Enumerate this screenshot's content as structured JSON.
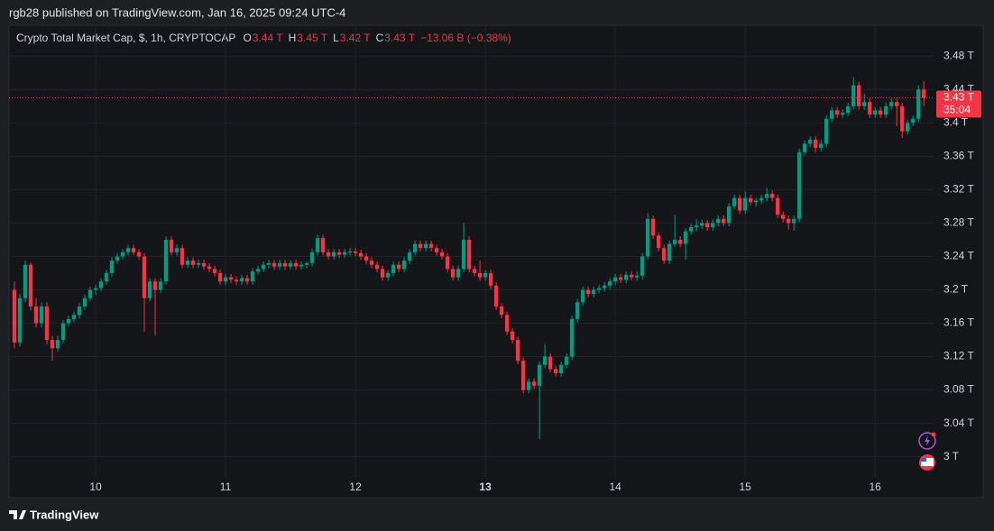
{
  "header": {
    "publisher": "rgb28 published on TradingView.com, Jan 16, 2025 09:24 UTC-4"
  },
  "footer": {
    "brand": "TradingView"
  },
  "chart_data": {
    "type": "candlestick",
    "title": "Crypto Total Market Cap, $, 1h, CRYPTOCAP",
    "legend_ohlc": [
      {
        "key": "O",
        "value": "3.44 T"
      },
      {
        "key": "H",
        "value": "3.45 T"
      },
      {
        "key": "L",
        "value": "3.42 T"
      },
      {
        "key": "C",
        "value": "3.43 T"
      }
    ],
    "change": "−13.06 B (−0.38%)",
    "up_color": "#089981",
    "down_color": "#f23645",
    "last_price": {
      "value": 3.43,
      "label": "3.43 T"
    },
    "countdown": "35:04",
    "xlim": [
      -1,
      169.8
    ],
    "xticks": [
      {
        "value": 15,
        "label": "10"
      },
      {
        "value": 39,
        "label": "11"
      },
      {
        "value": 63,
        "label": "12"
      },
      {
        "value": 87,
        "label": "13",
        "bold": true
      },
      {
        "value": 111,
        "label": "14"
      },
      {
        "value": 135,
        "label": "15"
      },
      {
        "value": 159,
        "label": "16"
      }
    ],
    "ylim": [
      2.951,
      3.517
    ],
    "yticks": [
      {
        "value": 3.0,
        "label": "3 T"
      },
      {
        "value": 3.04,
        "label": "3.04 T"
      },
      {
        "value": 3.08,
        "label": "3.08 T"
      },
      {
        "value": 3.12,
        "label": "3.12 T"
      },
      {
        "value": 3.16,
        "label": "3.16 T"
      },
      {
        "value": 3.2,
        "label": "3.2 T"
      },
      {
        "value": 3.24,
        "label": "3.24 T"
      },
      {
        "value": 3.28,
        "label": "3.28 T"
      },
      {
        "value": 3.32,
        "label": "3.32 T"
      },
      {
        "value": 3.36,
        "label": "3.36 T"
      },
      {
        "value": 3.4,
        "label": "3.4 T"
      },
      {
        "value": 3.44,
        "label": "3.44 T"
      },
      {
        "value": 3.48,
        "label": "3.48 T"
      }
    ],
    "grid": true,
    "candles": [
      [
        3.2,
        3.21,
        3.13,
        3.137
      ],
      [
        3.137,
        3.195,
        3.132,
        3.19
      ],
      [
        3.19,
        3.235,
        3.185,
        3.23
      ],
      [
        3.23,
        3.233,
        3.175,
        3.18
      ],
      [
        3.18,
        3.19,
        3.155,
        3.16
      ],
      [
        3.16,
        3.185,
        3.155,
        3.18
      ],
      [
        3.18,
        3.185,
        3.135,
        3.14
      ],
      [
        3.14,
        3.145,
        3.115,
        3.13
      ],
      [
        3.13,
        3.145,
        3.126,
        3.14
      ],
      [
        3.14,
        3.164,
        3.136,
        3.16
      ],
      [
        3.16,
        3.169,
        3.156,
        3.165
      ],
      [
        3.165,
        3.174,
        3.161,
        3.17
      ],
      [
        3.17,
        3.184,
        3.166,
        3.18
      ],
      [
        3.18,
        3.194,
        3.176,
        3.19
      ],
      [
        3.19,
        3.204,
        3.186,
        3.2
      ],
      [
        3.2,
        3.206,
        3.194,
        3.202
      ],
      [
        3.202,
        3.214,
        3.198,
        3.21
      ],
      [
        3.21,
        3.224,
        3.206,
        3.22
      ],
      [
        3.22,
        3.239,
        3.216,
        3.235
      ],
      [
        3.235,
        3.244,
        3.231,
        3.24
      ],
      [
        3.24,
        3.249,
        3.236,
        3.245
      ],
      [
        3.245,
        3.254,
        3.241,
        3.25
      ],
      [
        3.25,
        3.254,
        3.241,
        3.245
      ],
      [
        3.245,
        3.249,
        3.236,
        3.24
      ],
      [
        3.24,
        3.244,
        3.15,
        3.19
      ],
      [
        3.19,
        3.214,
        3.186,
        3.21
      ],
      [
        3.21,
        3.214,
        3.145,
        3.2
      ],
      [
        3.2,
        3.214,
        3.196,
        3.21
      ],
      [
        3.21,
        3.264,
        3.206,
        3.26
      ],
      [
        3.26,
        3.264,
        3.241,
        3.245
      ],
      [
        3.245,
        3.254,
        3.241,
        3.25
      ],
      [
        3.25,
        3.254,
        3.226,
        3.23
      ],
      [
        3.23,
        3.239,
        3.226,
        3.235
      ],
      [
        3.235,
        3.239,
        3.226,
        3.23
      ],
      [
        3.23,
        3.236,
        3.226,
        3.232
      ],
      [
        3.232,
        3.236,
        3.224,
        3.228
      ],
      [
        3.228,
        3.232,
        3.221,
        3.225
      ],
      [
        3.225,
        3.229,
        3.216,
        3.22
      ],
      [
        3.22,
        3.224,
        3.206,
        3.21
      ],
      [
        3.21,
        3.219,
        3.206,
        3.215
      ],
      [
        3.215,
        3.219,
        3.208,
        3.212
      ],
      [
        3.212,
        3.216,
        3.206,
        3.21
      ],
      [
        3.21,
        3.218,
        3.206,
        3.214
      ],
      [
        3.214,
        3.218,
        3.206,
        3.21
      ],
      [
        3.21,
        3.226,
        3.206,
        3.222
      ],
      [
        3.222,
        3.229,
        3.218,
        3.225
      ],
      [
        3.225,
        3.234,
        3.221,
        3.23
      ],
      [
        3.23,
        3.236,
        3.226,
        3.232
      ],
      [
        3.232,
        3.236,
        3.224,
        3.228
      ],
      [
        3.228,
        3.236,
        3.224,
        3.232
      ],
      [
        3.232,
        3.236,
        3.224,
        3.228
      ],
      [
        3.228,
        3.236,
        3.224,
        3.232
      ],
      [
        3.232,
        3.236,
        3.224,
        3.228
      ],
      [
        3.228,
        3.234,
        3.224,
        3.23
      ],
      [
        3.23,
        3.234,
        3.226,
        3.232
      ],
      [
        3.232,
        3.249,
        3.228,
        3.245
      ],
      [
        3.245,
        3.266,
        3.241,
        3.262
      ],
      [
        3.262,
        3.266,
        3.241,
        3.245
      ],
      [
        3.245,
        3.249,
        3.236,
        3.24
      ],
      [
        3.24,
        3.249,
        3.236,
        3.245
      ],
      [
        3.245,
        3.249,
        3.238,
        3.242
      ],
      [
        3.242,
        3.249,
        3.238,
        3.245
      ],
      [
        3.245,
        3.25,
        3.241,
        3.246
      ],
      [
        3.246,
        3.25,
        3.24,
        3.244
      ],
      [
        3.244,
        3.248,
        3.236,
        3.24
      ],
      [
        3.24,
        3.244,
        3.231,
        3.235
      ],
      [
        3.235,
        3.239,
        3.226,
        3.23
      ],
      [
        3.23,
        3.234,
        3.221,
        3.225
      ],
      [
        3.225,
        3.229,
        3.211,
        3.215
      ],
      [
        3.215,
        3.224,
        3.211,
        3.22
      ],
      [
        3.22,
        3.234,
        3.216,
        3.23
      ],
      [
        3.23,
        3.234,
        3.221,
        3.225
      ],
      [
        3.225,
        3.239,
        3.221,
        3.235
      ],
      [
        3.235,
        3.249,
        3.231,
        3.245
      ],
      [
        3.245,
        3.259,
        3.241,
        3.255
      ],
      [
        3.255,
        3.259,
        3.246,
        3.25
      ],
      [
        3.25,
        3.259,
        3.246,
        3.255
      ],
      [
        3.255,
        3.259,
        3.246,
        3.25
      ],
      [
        3.25,
        3.254,
        3.241,
        3.245
      ],
      [
        3.245,
        3.249,
        3.236,
        3.24
      ],
      [
        3.24,
        3.244,
        3.221,
        3.225
      ],
      [
        3.225,
        3.229,
        3.211,
        3.215
      ],
      [
        3.215,
        3.229,
        3.211,
        3.225
      ],
      [
        3.225,
        3.28,
        3.221,
        3.26
      ],
      [
        3.26,
        3.264,
        3.221,
        3.225
      ],
      [
        3.225,
        3.229,
        3.216,
        3.22
      ],
      [
        3.22,
        3.235,
        3.211,
        3.215
      ],
      [
        3.215,
        3.224,
        3.211,
        3.22
      ],
      [
        3.22,
        3.224,
        3.201,
        3.205
      ],
      [
        3.205,
        3.209,
        3.176,
        3.18
      ],
      [
        3.18,
        3.184,
        3.166,
        3.17
      ],
      [
        3.17,
        3.174,
        3.146,
        3.15
      ],
      [
        3.15,
        3.154,
        3.136,
        3.14
      ],
      [
        3.14,
        3.144,
        3.111,
        3.115
      ],
      [
        3.115,
        3.119,
        3.076,
        3.08
      ],
      [
        3.08,
        3.094,
        3.076,
        3.09
      ],
      [
        3.09,
        3.094,
        3.081,
        3.085
      ],
      [
        3.085,
        3.114,
        3.021,
        3.11
      ],
      [
        3.11,
        3.135,
        3.106,
        3.12
      ],
      [
        3.12,
        3.124,
        3.101,
        3.105
      ],
      [
        3.105,
        3.109,
        3.096,
        3.1
      ],
      [
        3.1,
        3.114,
        3.096,
        3.11
      ],
      [
        3.11,
        3.124,
        3.106,
        3.12
      ],
      [
        3.12,
        3.169,
        3.116,
        3.165
      ],
      [
        3.165,
        3.189,
        3.161,
        3.185
      ],
      [
        3.185,
        3.204,
        3.181,
        3.2
      ],
      [
        3.2,
        3.204,
        3.191,
        3.195
      ],
      [
        3.195,
        3.204,
        3.191,
        3.2
      ],
      [
        3.2,
        3.206,
        3.196,
        3.202
      ],
      [
        3.202,
        3.209,
        3.198,
        3.205
      ],
      [
        3.205,
        3.214,
        3.201,
        3.21
      ],
      [
        3.21,
        3.219,
        3.206,
        3.215
      ],
      [
        3.215,
        3.219,
        3.208,
        3.212
      ],
      [
        3.212,
        3.222,
        3.208,
        3.218
      ],
      [
        3.218,
        3.222,
        3.211,
        3.215
      ],
      [
        3.215,
        3.222,
        3.211,
        3.217
      ],
      [
        3.217,
        3.244,
        3.213,
        3.24
      ],
      [
        3.24,
        3.292,
        3.236,
        3.285
      ],
      [
        3.285,
        3.289,
        3.261,
        3.265
      ],
      [
        3.265,
        3.269,
        3.246,
        3.25
      ],
      [
        3.25,
        3.254,
        3.231,
        3.235
      ],
      [
        3.235,
        3.259,
        3.231,
        3.255
      ],
      [
        3.255,
        3.29,
        3.251,
        3.26
      ],
      [
        3.26,
        3.264,
        3.251,
        3.255
      ],
      [
        3.255,
        3.274,
        3.236,
        3.27
      ],
      [
        3.27,
        3.279,
        3.266,
        3.275
      ],
      [
        3.275,
        3.285,
        3.27,
        3.277
      ],
      [
        3.277,
        3.284,
        3.273,
        3.28
      ],
      [
        3.28,
        3.284,
        3.271,
        3.275
      ],
      [
        3.275,
        3.284,
        3.271,
        3.28
      ],
      [
        3.28,
        3.289,
        3.276,
        3.285
      ],
      [
        3.285,
        3.289,
        3.276,
        3.28
      ],
      [
        3.28,
        3.304,
        3.276,
        3.3
      ],
      [
        3.3,
        3.314,
        3.296,
        3.31
      ],
      [
        3.31,
        3.314,
        3.291,
        3.295
      ],
      [
        3.295,
        3.318,
        3.291,
        3.31
      ],
      [
        3.31,
        3.314,
        3.301,
        3.305
      ],
      [
        3.305,
        3.31,
        3.3,
        3.307
      ],
      [
        3.307,
        3.314,
        3.303,
        3.31
      ],
      [
        3.31,
        3.322,
        3.306,
        3.315
      ],
      [
        3.315,
        3.319,
        3.306,
        3.31
      ],
      [
        3.31,
        3.314,
        3.286,
        3.29
      ],
      [
        3.29,
        3.294,
        3.281,
        3.285
      ],
      [
        3.285,
        3.289,
        3.272,
        3.28
      ],
      [
        3.28,
        3.289,
        3.271,
        3.285
      ],
      [
        3.285,
        3.369,
        3.281,
        3.365
      ],
      [
        3.365,
        3.379,
        3.361,
        3.375
      ],
      [
        3.375,
        3.384,
        3.371,
        3.38
      ],
      [
        3.38,
        3.384,
        3.365,
        3.37
      ],
      [
        3.37,
        3.38,
        3.366,
        3.375
      ],
      [
        3.375,
        3.409,
        3.371,
        3.405
      ],
      [
        3.405,
        3.419,
        3.401,
        3.415
      ],
      [
        3.415,
        3.419,
        3.406,
        3.41
      ],
      [
        3.41,
        3.416,
        3.406,
        3.412
      ],
      [
        3.412,
        3.424,
        3.408,
        3.42
      ],
      [
        3.42,
        3.455,
        3.416,
        3.445
      ],
      [
        3.445,
        3.449,
        3.416,
        3.42
      ],
      [
        3.42,
        3.435,
        3.416,
        3.425
      ],
      [
        3.425,
        3.429,
        3.406,
        3.41
      ],
      [
        3.41,
        3.419,
        3.406,
        3.415
      ],
      [
        3.415,
        3.419,
        3.406,
        3.41
      ],
      [
        3.41,
        3.424,
        3.406,
        3.42
      ],
      [
        3.42,
        3.429,
        3.416,
        3.425
      ],
      [
        3.425,
        3.429,
        3.396,
        3.42
      ],
      [
        3.42,
        3.424,
        3.382,
        3.39
      ],
      [
        3.39,
        3.404,
        3.386,
        3.4
      ],
      [
        3.4,
        3.409,
        3.396,
        3.405
      ],
      [
        3.405,
        3.445,
        3.401,
        3.44
      ],
      [
        3.44,
        3.45,
        3.42,
        3.43
      ]
    ]
  }
}
